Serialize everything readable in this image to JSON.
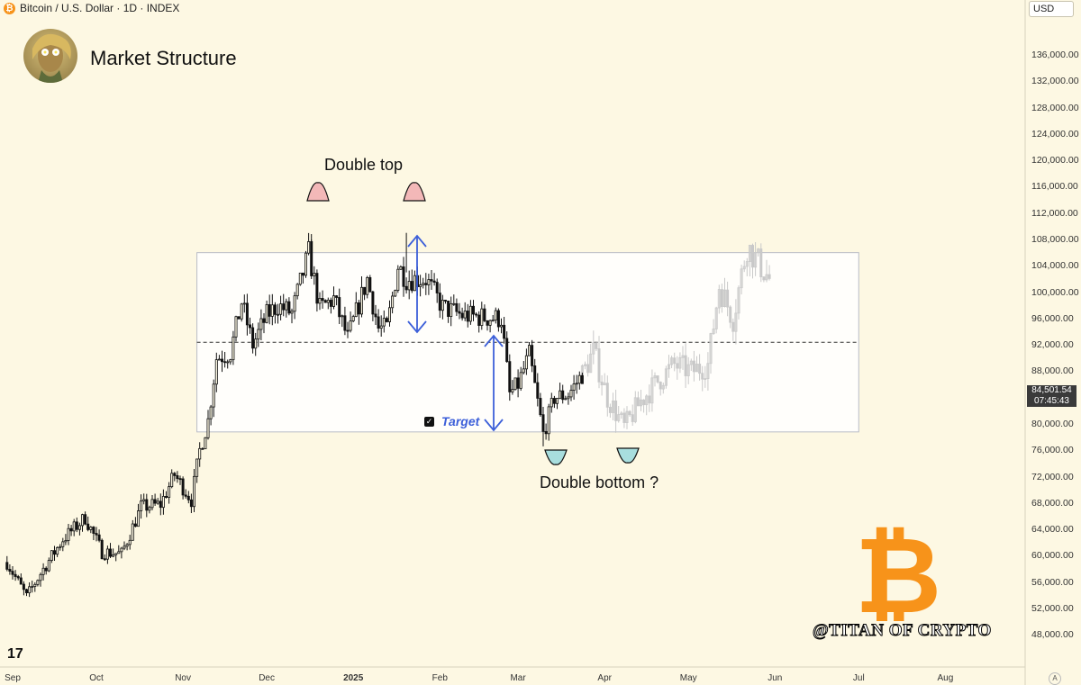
{
  "header": {
    "symbol_title": "Bitcoin / U.S. Dollar · 1D · INDEX",
    "symbol_icon": "bitcoin-icon"
  },
  "title": "Market Structure",
  "currency": "USD",
  "price_tag": {
    "price": "84,501.54",
    "countdown": "07:45:43"
  },
  "annotations": {
    "double_top": "Double top",
    "double_bottom": "Double bottom ?",
    "target": "Target"
  },
  "watermark": "@TITAN OF CRYPTO",
  "tv_logo": "17",
  "a_button": "A",
  "chart_data": {
    "type": "candlestick",
    "x_labels": [
      "Sep",
      "Oct",
      "Nov",
      "Dec",
      "2025",
      "Feb",
      "Mar",
      "Apr",
      "May",
      "Jun",
      "Jul",
      "Aug"
    ],
    "y_ticks": [
      "136,000.00",
      "132,000.00",
      "128,000.00",
      "124,000.00",
      "120,000.00",
      "116,000.00",
      "112,000.00",
      "108,000.00",
      "104,000.00",
      "100,000.00",
      "96,000.00",
      "92,000.00",
      "88,000.00",
      "84,000.00",
      "80,000.00",
      "76,000.00",
      "72,000.00",
      "68,000.00",
      "64,000.00",
      "60,000.00",
      "56,000.00",
      "52,000.00",
      "48,000.00"
    ],
    "ylim": [
      46000,
      137500
    ],
    "range_box": {
      "top": 106000,
      "bottom": 78800,
      "mid": 92400,
      "start": "2024-11-06",
      "end": "2025-07-01"
    },
    "close_path": [
      [
        "2024-08-30",
        59000
      ],
      [
        "2024-09-06",
        53800
      ],
      [
        "2024-09-12",
        58000
      ],
      [
        "2024-09-19",
        62500
      ],
      [
        "2024-09-27",
        65800
      ],
      [
        "2024-10-03",
        60600
      ],
      [
        "2024-10-10",
        60300
      ],
      [
        "2024-10-17",
        67400
      ],
      [
        "2024-10-24",
        67800
      ],
      [
        "2024-10-29",
        72300
      ],
      [
        "2024-11-04",
        68500
      ],
      [
        "2024-11-07",
        76000
      ],
      [
        "2024-11-10",
        80500
      ],
      [
        "2024-11-13",
        90000
      ],
      [
        "2024-11-18",
        90800
      ],
      [
        "2024-11-22",
        98500
      ],
      [
        "2024-11-26",
        92000
      ],
      [
        "2024-12-01",
        96500
      ],
      [
        "2024-12-05",
        98000
      ],
      [
        "2024-12-10",
        96800
      ],
      [
        "2024-12-16",
        106000
      ],
      [
        "2024-12-20",
        97500
      ],
      [
        "2024-12-25",
        99000
      ],
      [
        "2024-12-30",
        93000
      ],
      [
        "2025-01-06",
        102000
      ],
      [
        "2025-01-10",
        94500
      ],
      [
        "2025-01-13",
        94500
      ],
      [
        "2025-01-17",
        104000
      ],
      [
        "2025-01-20",
        102000
      ],
      [
        "2025-01-27",
        102000
      ],
      [
        "2025-02-02",
        97700
      ],
      [
        "2025-02-09",
        96500
      ],
      [
        "2025-02-16",
        96200
      ],
      [
        "2025-02-23",
        96000
      ],
      [
        "2025-02-26",
        84500
      ],
      [
        "2025-03-01",
        86000
      ],
      [
        "2025-03-05",
        90500
      ],
      [
        "2025-03-10",
        78500
      ],
      [
        "2025-03-14",
        84000
      ],
      [
        "2025-03-19",
        84500
      ],
      [
        "2025-03-24",
        87500
      ]
    ],
    "projection_path": [
      [
        "2025-03-24",
        87500
      ],
      [
        "2025-03-28",
        91000
      ],
      [
        "2025-04-02",
        84000
      ],
      [
        "2025-04-08",
        79500
      ],
      [
        "2025-04-14",
        83500
      ],
      [
        "2025-04-20",
        86500
      ],
      [
        "2025-04-26",
        89000
      ],
      [
        "2025-05-02",
        88000
      ],
      [
        "2025-05-08",
        89000
      ],
      [
        "2025-05-12",
        101000
      ],
      [
        "2025-05-17",
        96000
      ],
      [
        "2025-05-22",
        107000
      ],
      [
        "2025-05-30",
        102000
      ]
    ],
    "extremes": {
      "high_1": [
        "2024-12-17",
        108000
      ],
      "high_2": [
        "2025-01-20",
        109000
      ],
      "low": [
        "2025-03-10",
        76600
      ]
    }
  }
}
